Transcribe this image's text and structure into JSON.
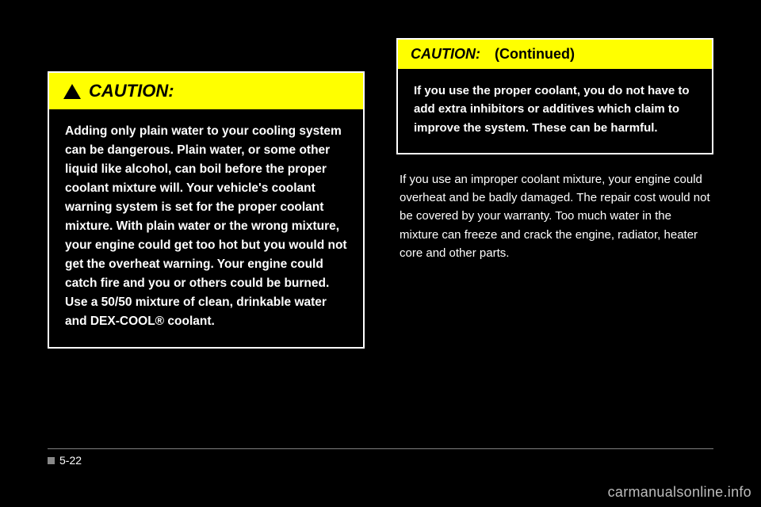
{
  "left_box": {
    "header_label": "CAUTION:",
    "body": "Adding only plain water to your cooling system can be dangerous. Plain water, or some other liquid like alcohol, can boil before the proper coolant mixture will. Your vehicle's coolant warning system is set for the proper coolant mixture. With plain water or the wrong mixture, your engine could get too hot but you would not get the overheat warning. Your engine could catch fire and you or others could be burned. Use a 50/50 mixture of clean, drinkable water and DEX-COOL® coolant.",
    "continued_marker": "CAUTION: (Continued)"
  },
  "right_box": {
    "header_label": "CAUTION:",
    "cont_label": "(Continued)",
    "body": "If you use the proper coolant, you do not have to add extra inhibitors or additives which claim to improve the system. These can be harmful."
  },
  "right_text": "If you use an improper coolant mixture, your engine could overheat and be badly damaged. The repair cost would not be covered by your warranty. Too much water in the mixture can freeze and crack the engine, radiator, heater core and other parts.",
  "page_number": "5-22",
  "watermark": "carmanualsonline.info",
  "colors": {
    "header_bg": "#ffff00",
    "page_bg": "#000000",
    "text": "#ffffff",
    "border": "#ffffff"
  }
}
